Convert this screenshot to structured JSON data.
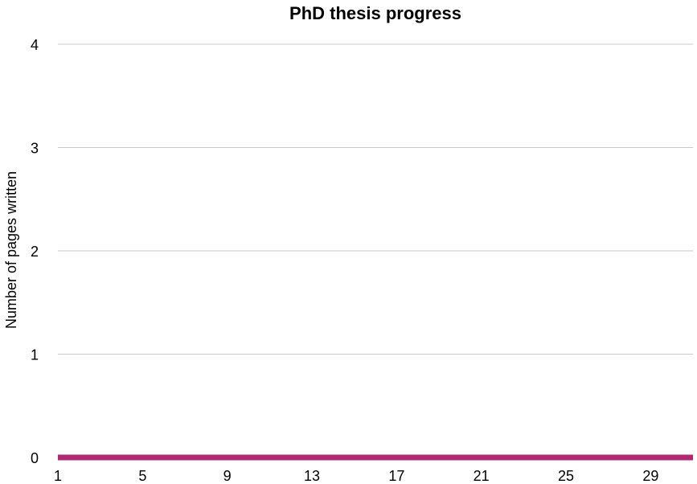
{
  "chart_data": {
    "type": "line",
    "title": "PhD thesis progress",
    "xlabel": "",
    "ylabel": "Number of pages written",
    "x": [
      1,
      2,
      3,
      4,
      5,
      6,
      7,
      8,
      9,
      10,
      11,
      12,
      13,
      14,
      15,
      16,
      17,
      18,
      19,
      20,
      21,
      22,
      23,
      24,
      25,
      26,
      27,
      28,
      29,
      30,
      31
    ],
    "x_tick_labels": [
      "1",
      "5",
      "9",
      "13",
      "17",
      "21",
      "25",
      "29"
    ],
    "x_tick_values": [
      1,
      5,
      9,
      13,
      17,
      21,
      25,
      29
    ],
    "y_tick_labels": [
      "0",
      "1",
      "2",
      "3",
      "4"
    ],
    "y_tick_values": [
      0,
      1,
      2,
      3,
      4
    ],
    "ylim": [
      0,
      4
    ],
    "xlim": [
      1,
      31
    ],
    "grid": true,
    "legend": "none",
    "series": [
      {
        "values": [
          0,
          0,
          0,
          0,
          0,
          0,
          0,
          0,
          0,
          0,
          0,
          0,
          0,
          0,
          0,
          0,
          0,
          0,
          0,
          0,
          0,
          0,
          0,
          0,
          0,
          0,
          0,
          0,
          0,
          0,
          0
        ],
        "color": "#b0286f"
      }
    ]
  }
}
